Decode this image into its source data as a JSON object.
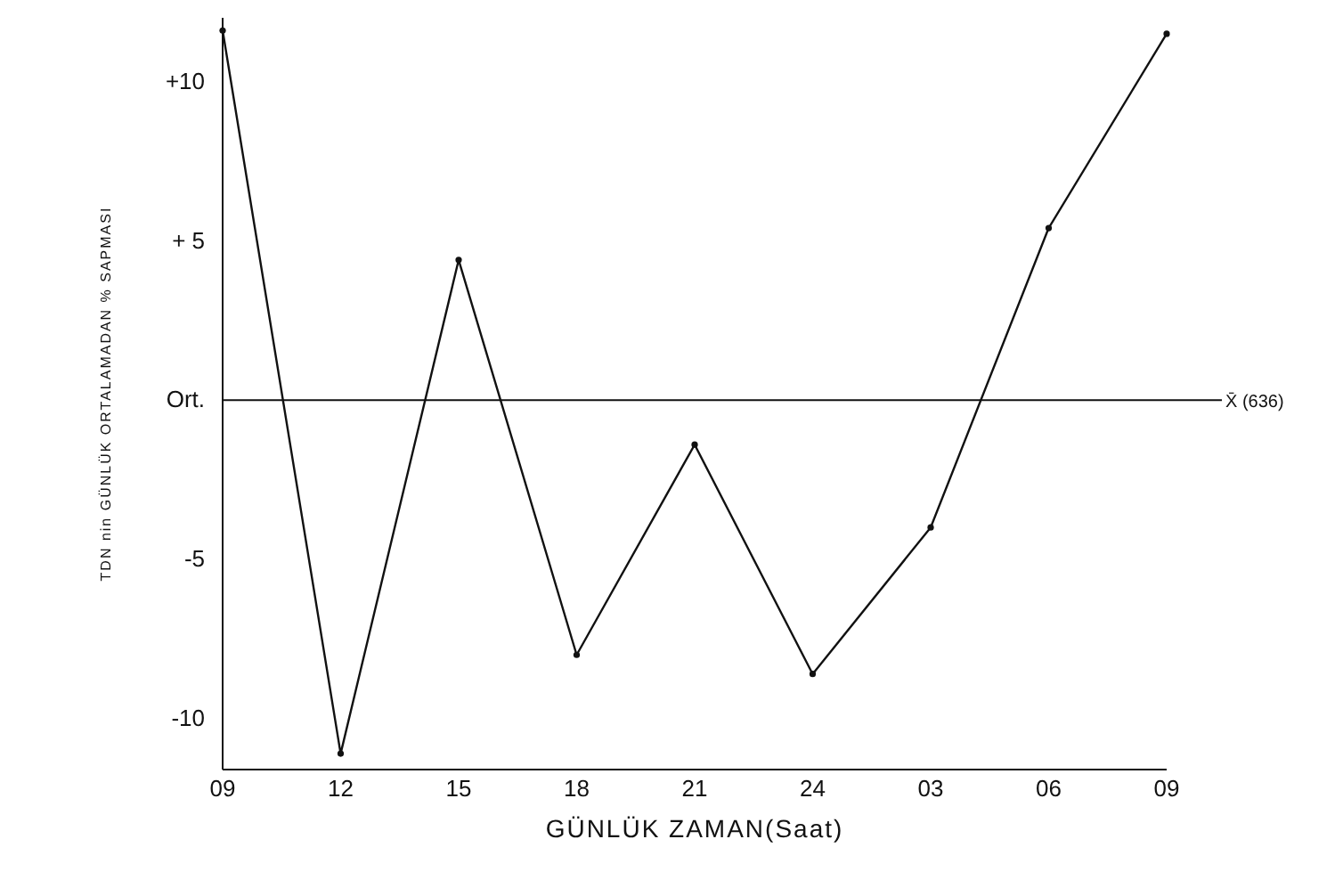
{
  "chart_data": {
    "type": "line",
    "xlabel": "GÜNLÜK ZAMAN(Saat)",
    "ylabel": "TDN nin GÜNLÜK ORTALAMADAN % SAPMASI",
    "categories": [
      "09",
      "12",
      "15",
      "18",
      "21",
      "24",
      "03",
      "06",
      "09"
    ],
    "series": [
      {
        "color": "#111111",
        "values": [
          11.6,
          -11.1,
          4.4,
          -8.0,
          -1.4,
          -8.6,
          -4.0,
          5.4,
          11.5
        ]
      }
    ],
    "ylim": [
      -11.6,
      12
    ],
    "yticks": [
      {
        "value": 10,
        "label": "+10"
      },
      {
        "value": 5,
        "label": "+ 5"
      },
      {
        "value": 0,
        "label": "Ort."
      },
      {
        "value": -5,
        "label": "-5"
      },
      {
        "value": -10,
        "label": "-10"
      }
    ],
    "ref_lines": [
      {
        "axis": "y",
        "value": 0,
        "label": "X̄ (636)"
      }
    ],
    "marker": "circle",
    "grid": false
  }
}
